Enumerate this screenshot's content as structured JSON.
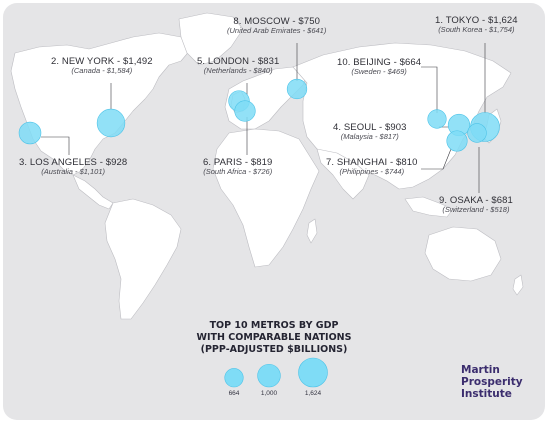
{
  "cities": [
    {
      "rank_label": "1. TOKYO - $1,624",
      "comparable": "(South Korea - $1,754)",
      "gdp": 1624
    },
    {
      "rank_label": "2. NEW YORK - $1,492",
      "comparable": "(Canada - $1,584)",
      "gdp": 1492
    },
    {
      "rank_label": "3. LOS ANGELES - $928",
      "comparable": "(Australia - $1,101)",
      "gdp": 928
    },
    {
      "rank_label": "4. SEOUL - $903",
      "comparable": "(Malaysia - $817)",
      "gdp": 903
    },
    {
      "rank_label": "5. LONDON - $831",
      "comparable": "(Netherlands - $840)",
      "gdp": 831
    },
    {
      "rank_label": "6. PARIS - $819",
      "comparable": "(South Africa - $726)",
      "gdp": 819
    },
    {
      "rank_label": "7. SHANGHAI - $810",
      "comparable": "(Philippines - $744)",
      "gdp": 810
    },
    {
      "rank_label": "8. MOSCOW - $750",
      "comparable": "(United Arab Emirates - $641)",
      "gdp": 750
    },
    {
      "rank_label": "9. OSAKA - $681",
      "comparable": "(Switzerland - $518)",
      "gdp": 681
    },
    {
      "rank_label": "10. BEIJING - $664",
      "comparable": "(Sweden - $469)",
      "gdp": 664
    }
  ],
  "legend": {
    "title_lines": [
      "TOP 10 METROS BY GDP",
      "WITH COMPARABLE NATIONS",
      "(PPP-ADJUSTED $BILLIONS)"
    ],
    "sizes": [
      {
        "value": 664,
        "label": "664"
      },
      {
        "value": 1000,
        "label": "1,000"
      },
      {
        "value": 1624,
        "label": "1,624"
      }
    ]
  },
  "brand": {
    "lines": [
      "Martin",
      "Prosperity",
      "Institute"
    ]
  },
  "colors": {
    "ocean": "#e5e5e7",
    "land": "#ffffff",
    "border": "#bdbdc2",
    "bubble": "#7fdcf6",
    "bubble_stroke": "#4cc3e8",
    "leader": "#3a3a40",
    "brand": "#3b2d6e"
  }
}
